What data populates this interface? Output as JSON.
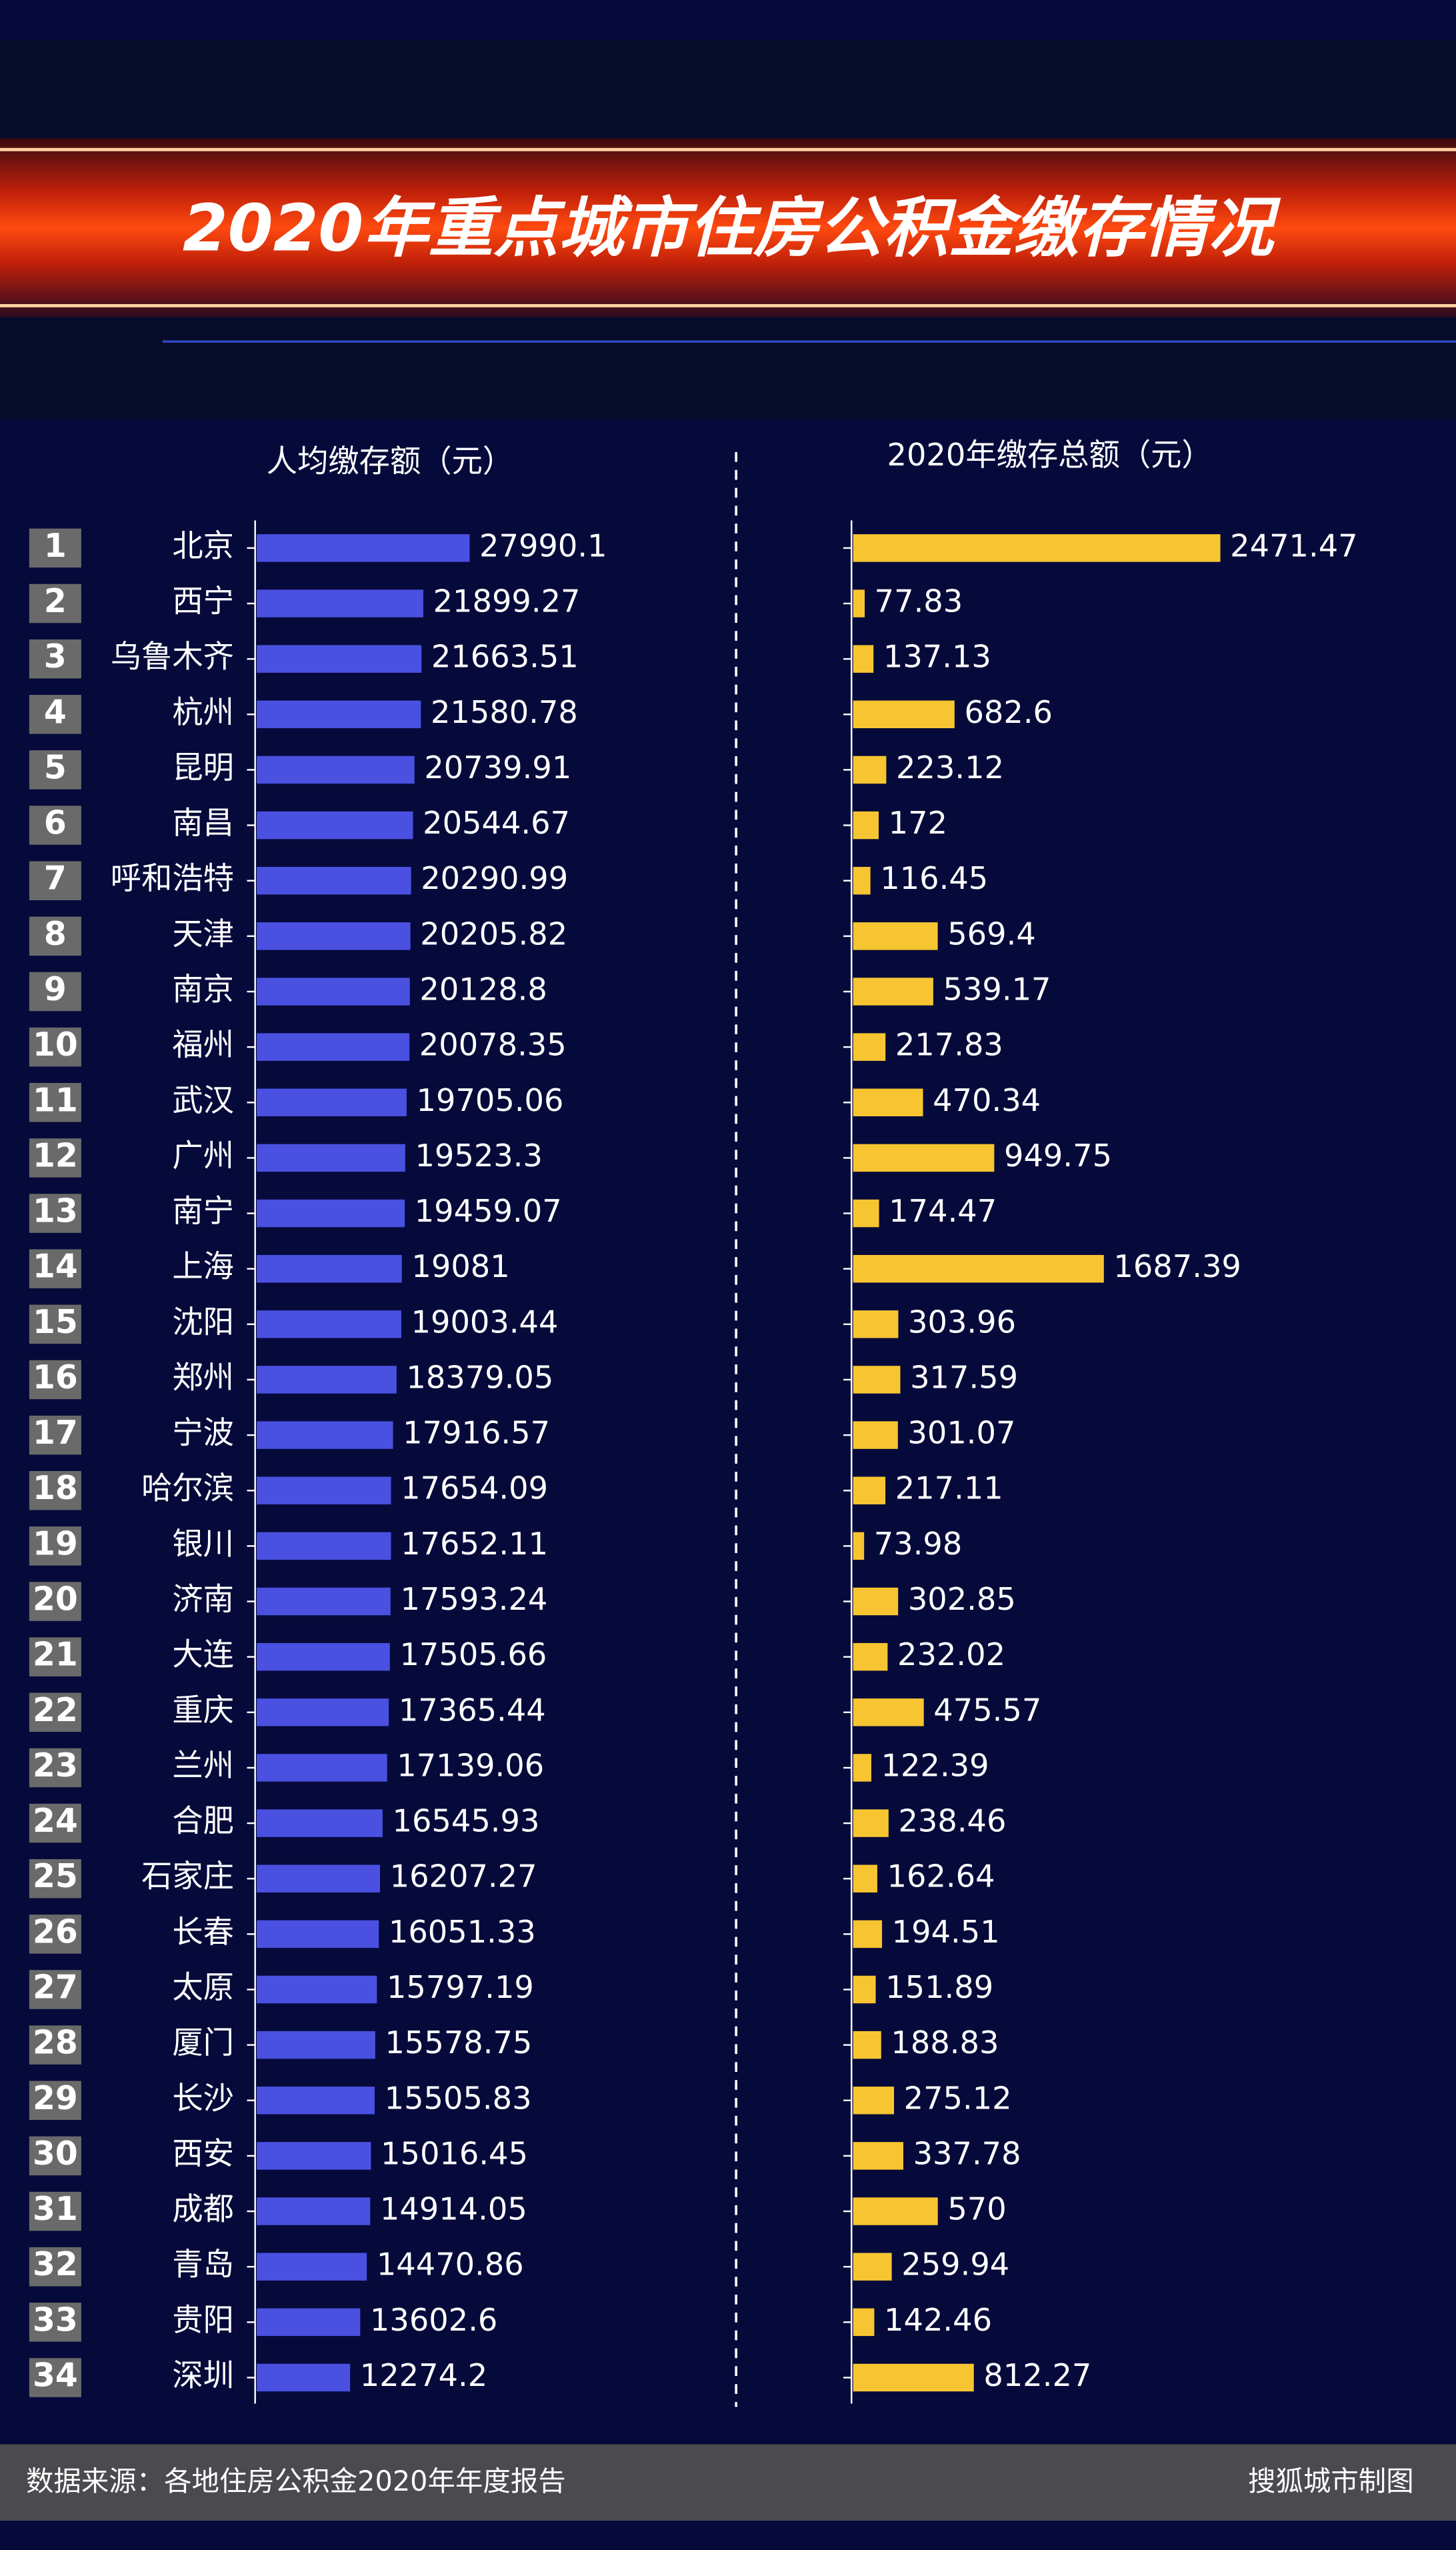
{
  "title": "2020年重点城市住房公积金缴存情况",
  "source": "数据来源：各地住房公积金2020年年度报告",
  "credit": "搜狐城市制图",
  "chart_data": [
    {
      "type": "bar",
      "orientation": "horizontal",
      "title": "人均缴存额（元）",
      "color": "#4a50e0",
      "ranks": [
        1,
        2,
        3,
        4,
        5,
        6,
        7,
        8,
        9,
        10,
        11,
        12,
        13,
        14,
        15,
        16,
        17,
        18,
        19,
        20,
        21,
        22,
        23,
        24,
        25,
        26,
        27,
        28,
        29,
        30,
        31,
        32,
        33,
        34
      ],
      "categories": [
        "北京",
        "西宁",
        "乌鲁木齐",
        "杭州",
        "昆明",
        "南昌",
        "呼和浩特",
        "天津",
        "南京",
        "福州",
        "武汉",
        "广州",
        "南宁",
        "上海",
        "沈阳",
        "郑州",
        "宁波",
        "哈尔滨",
        "银川",
        "济南",
        "大连",
        "重庆",
        "兰州",
        "合肥",
        "石家庄",
        "长春",
        "太原",
        "厦门",
        "长沙",
        "西安",
        "成都",
        "青岛",
        "贵阳",
        "深圳"
      ],
      "values": [
        27990.1,
        21899.27,
        21663.51,
        21580.78,
        20739.91,
        20544.67,
        20290.99,
        20205.82,
        20128.8,
        20078.35,
        19705.06,
        19523.3,
        19459.07,
        19081,
        19003.44,
        18379.05,
        17916.57,
        17654.09,
        17652.11,
        17593.24,
        17505.66,
        17365.44,
        17139.06,
        16545.93,
        16207.27,
        16051.33,
        15797.19,
        15578.75,
        15505.83,
        15016.45,
        14914.05,
        14470.86,
        13602.6,
        12274.2
      ]
    },
    {
      "type": "bar",
      "orientation": "horizontal",
      "title": "2020年缴存总额（元）",
      "color": "#f7c531",
      "values": [
        2471.47,
        77.83,
        137.13,
        682.6,
        223.12,
        172,
        116.45,
        569.4,
        539.17,
        217.83,
        470.34,
        949.75,
        174.47,
        1687.39,
        303.96,
        317.59,
        301.07,
        217.11,
        73.98,
        302.85,
        232.02,
        475.57,
        122.39,
        238.46,
        162.64,
        194.51,
        151.89,
        188.83,
        275.12,
        337.78,
        570,
        259.94,
        142.46,
        812.27
      ]
    }
  ]
}
